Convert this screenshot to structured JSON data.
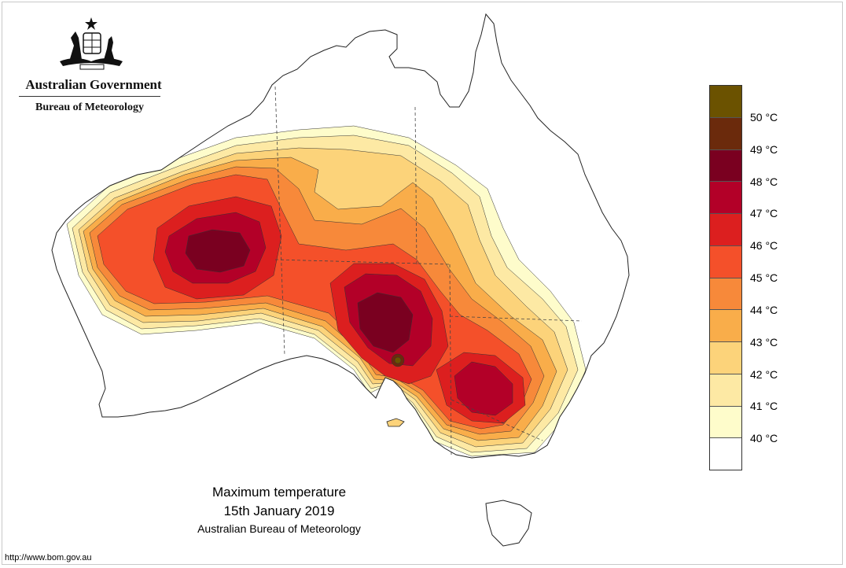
{
  "header": {
    "government": "Australian Government",
    "bureau": "Bureau of Meteorology",
    "crest_icon": "coat-of-arms-icon"
  },
  "caption": {
    "title": "Maximum temperature",
    "date": "15th January 2019",
    "source": "Australian Bureau of Meteorology"
  },
  "footer": {
    "url": "http://www.bom.gov.au"
  },
  "legend": {
    "colors": [
      "#6b5200",
      "#6b2a0c",
      "#7a0020",
      "#b30028",
      "#dc1f1f",
      "#f4502a",
      "#f7893a",
      "#f9ad4a",
      "#fcd37a",
      "#fde9a4",
      "#fefccb",
      "#ffffff"
    ],
    "labels": [
      "50 °C",
      "49 °C",
      "48 °C",
      "47 °C",
      "46 °C",
      "45 °C",
      "44 °C",
      "43 °C",
      "42 °C",
      "41 °C",
      "40 °C"
    ]
  },
  "map": {
    "region": "Australia",
    "hotspots": [
      {
        "name": "western-australia-interior",
        "peak": "48 °C"
      },
      {
        "name": "south-australia-interior",
        "peak": "48 °C"
      },
      {
        "name": "port-augusta",
        "peak": "49 °C"
      },
      {
        "name": "western-new-south-wales",
        "peak": "47 °C"
      }
    ]
  }
}
